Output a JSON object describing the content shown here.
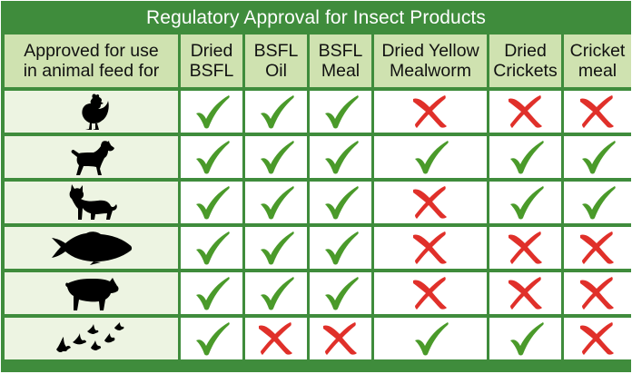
{
  "title": "Regulatory Approval for Insect Products",
  "header": {
    "first_line1": "Approved for use",
    "first_line2": "in animal feed for",
    "columns": [
      {
        "line1": "Dried",
        "line2": "BSFL"
      },
      {
        "line1": "BSFL",
        "line2": "Oil"
      },
      {
        "line1": "BSFL",
        "line2": "Meal"
      },
      {
        "line1": "Dried Yellow",
        "line2": "Mealworm"
      },
      {
        "line1": "Dried",
        "line2": "Crickets"
      },
      {
        "line1": "Cricket",
        "line2": "meal"
      }
    ]
  },
  "rows": [
    {
      "animal_icon": "chicken-icon",
      "approvals": [
        true,
        true,
        true,
        false,
        false,
        false
      ]
    },
    {
      "animal_icon": "dog-icon",
      "approvals": [
        true,
        true,
        true,
        true,
        true,
        true
      ]
    },
    {
      "animal_icon": "cat-icon",
      "approvals": [
        true,
        true,
        true,
        false,
        true,
        true
      ]
    },
    {
      "animal_icon": "fish-icon",
      "approvals": [
        true,
        true,
        true,
        false,
        false,
        false
      ]
    },
    {
      "animal_icon": "pig-icon",
      "approvals": [
        true,
        true,
        true,
        false,
        false,
        false
      ]
    },
    {
      "animal_icon": "birds-icon",
      "approvals": [
        true,
        false,
        false,
        true,
        true,
        false
      ]
    }
  ],
  "colors": {
    "border_green": "#3f8c3c",
    "header_fill": "#cfe2b0",
    "label_fill": "#edf4e2",
    "check_green": "#4a9a2a",
    "cross_red": "#e0302a"
  }
}
